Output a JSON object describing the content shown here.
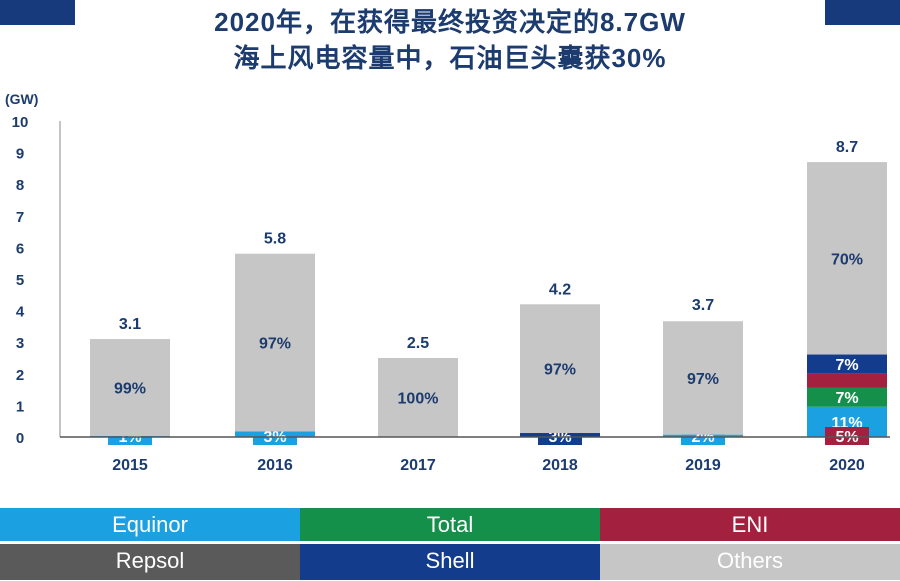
{
  "title_line1": "2020年，在获得最终投资决定的8.7GW",
  "title_line2": "海上风电容量中，石油巨头囊获30%",
  "chart_data": {
    "type": "bar",
    "stacked": true,
    "ylabel": "(GW)",
    "ylim": [
      0,
      10
    ],
    "yticks": [
      0,
      1,
      2,
      3,
      4,
      5,
      6,
      7,
      8,
      9,
      10
    ],
    "categories": [
      "2015",
      "2016",
      "2017",
      "2018",
      "2019",
      "2020"
    ],
    "totals": [
      3.1,
      5.8,
      2.5,
      4.2,
      3.7,
      8.7
    ],
    "total_labels": [
      "3.1",
      "5.8",
      "2.5",
      "4.2",
      "3.7",
      "8.7"
    ],
    "series": [
      {
        "name": "Equinor",
        "color": "#1ba1e2",
        "percent": [
          1,
          3,
          0,
          0,
          2,
          11
        ]
      },
      {
        "name": "Total",
        "color": "#15904a",
        "percent": [
          0,
          0,
          0,
          0,
          0,
          7
        ]
      },
      {
        "name": "ENI",
        "color": "#a3213f",
        "percent": [
          0,
          0,
          0,
          0,
          0,
          5
        ]
      },
      {
        "name": "Shell",
        "color": "#143c8c",
        "percent": [
          0,
          0,
          0,
          3,
          0,
          7
        ]
      },
      {
        "name": "Repsol",
        "color": "#5a5a5a",
        "percent": [
          0,
          0,
          0,
          0,
          0,
          0
        ]
      },
      {
        "name": "Others",
        "color": "#c6c6c6",
        "percent": [
          99,
          97,
          100,
          97,
          97,
          70
        ]
      }
    ],
    "legend": "bottom",
    "grid": false
  },
  "legend_items": [
    {
      "name": "Equinor",
      "color": "#1ba1e2"
    },
    {
      "name": "Total",
      "color": "#15904a"
    },
    {
      "name": "ENI",
      "color": "#a3213f"
    },
    {
      "name": "Repsol",
      "color": "#5a5a5a"
    },
    {
      "name": "Shell",
      "color": "#143c8c"
    },
    {
      "name": "Others",
      "color": "#c6c6c6"
    }
  ]
}
